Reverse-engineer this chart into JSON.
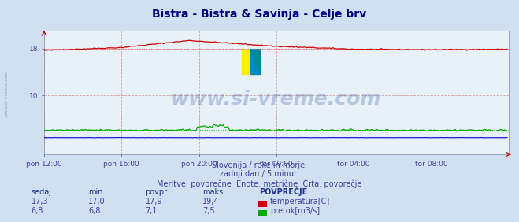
{
  "title": "Bistra - Bistra & Savinja - Celje brv",
  "title_color": "#000080",
  "bg_color": "#d0e0f0",
  "plot_bg_color": "#e8f0f8",
  "xlabel_color": "#4040a0",
  "text_color": "#4040a0",
  "watermark": "www.si-vreme.com",
  "watermark_color": "#4466aa",
  "x_labels": [
    "pon 12:00",
    "pon 16:00",
    "pon 20:00",
    "tor 00:00",
    "tor 04:00",
    "tor 08:00"
  ],
  "x_ticks": [
    0,
    48,
    96,
    144,
    192,
    240
  ],
  "x_max": 288,
  "y_ticks": [
    10,
    18
  ],
  "ylim": [
    0,
    21
  ],
  "temp_color": "#cc0000",
  "flow_color": "#00aa00",
  "height_color": "#0000cc",
  "avg_temp_color": "#ff6666",
  "avg_flow_color": "#00cc00",
  "subtitle1": "Slovenija / reke in morje.",
  "subtitle2": "zadnji dan / 5 minut.",
  "subtitle3": "Meritve: povprečne  Enote: metrične  Črta: povprečje",
  "table_headers": [
    "sedaj:",
    "min.:",
    "povpr.:",
    "maks.:",
    "POVPREČJE"
  ],
  "row1": [
    "17,3",
    "17,0",
    "17,9",
    "19,4"
  ],
  "row2": [
    "6,8",
    "6,8",
    "7,1",
    "7,5"
  ],
  "legend1": "temperatura[C]",
  "legend2": "pretok[m3/s]",
  "temp_avg_val": 18.0,
  "flow_avg_val": 7.1
}
